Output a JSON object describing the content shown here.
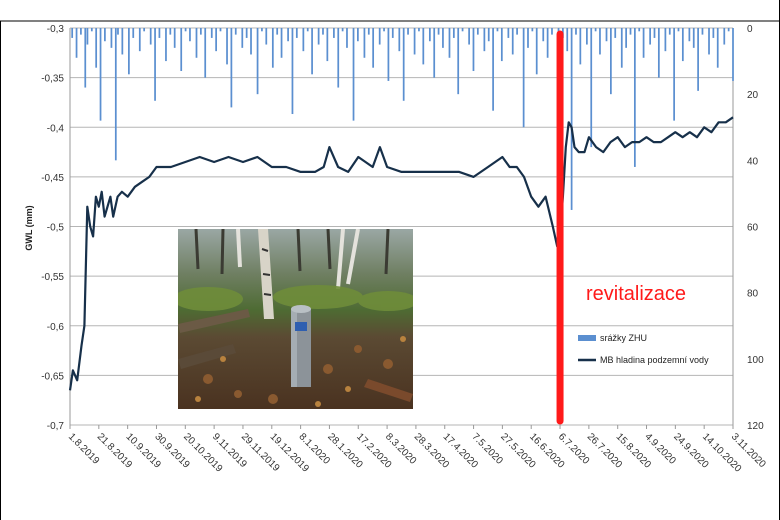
{
  "chart_data": {
    "type": "line",
    "ylabel": "GWL (mm)",
    "left_axis": {
      "min": -0.7,
      "max": -0.3,
      "ticks": [
        "-0,3",
        "-0,35",
        "-0,4",
        "-0,45",
        "-0,5",
        "-0,55",
        "-0,6",
        "-0,65",
        "-0,7"
      ]
    },
    "right_axis": {
      "min": 0,
      "max": 120,
      "inverted": true,
      "ticks": [
        "0",
        "20",
        "40",
        "60",
        "80",
        "100",
        "120"
      ]
    },
    "x_ticks": [
      "1.8.2019",
      "21.8.2019",
      "10.9.2019",
      "30.9.2019",
      "20.10.2019",
      "9.11.2019",
      "29.11.2019",
      "19.12.2019",
      "8.1.2020",
      "28.1.2020",
      "17.2.2020",
      "8.3.2020",
      "28.3.2020",
      "17.4.2020",
      "7.5.2020",
      "27.5.2020",
      "16.6.2020",
      "6.7.2020",
      "26.7.2020",
      "15.8.2020",
      "4.9.2020",
      "24.9.2020",
      "14.10.2020",
      "3.11.2020"
    ],
    "grid": true,
    "legend_position": "right",
    "series": [
      {
        "name": "srážky ZHU",
        "axis": "right",
        "kind": "bar",
        "color": "#5b8fd0",
        "x_start": "1.8.2019",
        "x_end": "3.11.2020",
        "values": [
          0,
          3,
          0,
          9,
          0,
          2,
          0,
          18,
          5,
          0,
          1,
          0,
          12,
          0,
          28,
          0,
          4,
          0,
          0,
          6,
          0,
          40,
          2,
          0,
          8,
          0,
          0,
          14,
          0,
          3,
          0,
          0,
          7,
          0,
          1,
          0,
          0,
          5,
          0,
          22,
          0,
          3,
          0,
          0,
          10,
          0,
          2,
          0,
          6,
          0,
          0,
          13,
          0,
          1,
          0,
          4,
          0,
          0,
          9,
          0,
          2,
          0,
          15,
          0,
          0,
          3,
          0,
          7,
          0,
          1,
          0,
          0,
          11,
          0,
          24,
          0,
          2,
          0,
          0,
          6,
          0,
          3,
          0,
          8,
          0,
          0,
          20,
          0,
          1,
          0,
          5,
          0,
          0,
          12,
          0,
          2,
          0,
          9,
          0,
          0,
          4,
          0,
          26,
          0,
          3,
          0,
          0,
          7,
          0,
          1,
          0,
          14,
          0,
          0,
          5,
          0,
          2,
          0,
          10,
          0,
          0,
          3,
          0,
          18,
          0,
          1,
          0,
          6,
          0,
          0,
          28,
          0,
          4,
          0,
          0,
          9,
          0,
          2,
          0,
          12,
          0,
          0,
          5,
          0,
          1,
          0,
          16,
          0,
          3,
          0,
          0,
          7,
          0,
          22,
          0,
          2,
          0,
          0,
          8,
          0,
          1,
          0,
          11,
          0,
          0,
          4,
          0,
          15,
          0,
          2,
          0,
          6,
          0,
          0,
          9,
          0,
          3,
          0,
          20,
          0,
          1,
          0,
          0,
          5,
          0,
          13,
          0,
          2,
          0,
          0,
          7,
          0,
          4,
          0,
          25,
          0,
          1,
          0,
          10,
          0,
          0,
          3,
          0,
          8,
          0,
          2,
          0,
          0,
          30,
          0,
          6,
          0,
          1,
          0,
          14,
          0,
          0,
          4,
          0,
          9,
          0,
          2,
          0,
          0,
          17,
          0,
          3,
          0,
          7,
          0,
          55,
          0,
          2,
          0,
          11,
          0,
          0,
          5,
          0,
          36,
          0,
          1,
          0,
          8,
          0,
          0,
          4,
          0,
          20,
          0,
          3,
          0,
          0,
          12,
          0,
          6,
          0,
          2,
          0,
          42,
          0,
          1,
          0,
          9,
          0,
          0,
          5,
          0,
          3,
          0,
          15,
          0,
          0,
          7,
          0,
          2,
          0,
          28,
          0,
          1,
          0,
          10,
          0,
          0,
          4,
          0,
          6,
          0,
          19,
          0,
          2,
          0,
          0,
          8,
          0,
          3,
          0,
          12,
          0,
          0,
          5,
          0,
          1,
          0,
          16
        ]
      },
      {
        "name": "MB hladina podzemní vody",
        "axis": "left",
        "kind": "line",
        "color": "#17304a",
        "x": [
          "1.8.2019",
          "3.8.2019",
          "6.8.2019",
          "9.8.2019",
          "11.8.2019",
          "13.8.2019",
          "15.8.2019",
          "17.8.2019",
          "19.8.2019",
          "21.8.2019",
          "23.8.2019",
          "25.8.2019",
          "27.8.2019",
          "29.8.2019",
          "31.8.2019",
          "3.9.2019",
          "6.9.2019",
          "10.9.2019",
          "15.9.2019",
          "20.9.2019",
          "25.9.2019",
          "30.9.2019",
          "5.10.2019",
          "10.10.2019",
          "20.10.2019",
          "30.10.2019",
          "9.11.2019",
          "19.11.2019",
          "29.11.2019",
          "9.12.2019",
          "19.12.2019",
          "29.12.2019",
          "8.1.2020",
          "18.1.2020",
          "24.1.2020",
          "28.1.2020",
          "3.2.2020",
          "10.2.2020",
          "17.2.2020",
          "27.2.2020",
          "3.3.2020",
          "8.3.2020",
          "18.3.2020",
          "28.3.2020",
          "7.4.2020",
          "17.4.2020",
          "27.4.2020",
          "7.5.2020",
          "17.5.2020",
          "27.5.2020",
          "1.6.2020",
          "6.6.2020",
          "11.6.2020",
          "16.6.2020",
          "21.6.2020",
          "26.6.2020",
          "1.7.2020",
          "4.7.2020",
          "6.7.2020",
          "8.7.2020",
          "10.7.2020",
          "12.7.2020",
          "14.7.2020",
          "16.7.2020",
          "19.7.2020",
          "23.7.2020",
          "26.7.2020",
          "31.7.2020",
          "5.8.2020",
          "10.8.2020",
          "15.8.2020",
          "20.8.2020",
          "25.8.2020",
          "30.8.2020",
          "4.9.2020",
          "9.9.2020",
          "14.9.2020",
          "19.9.2020",
          "24.9.2020",
          "29.9.2020",
          "4.10.2020",
          "9.10.2020",
          "14.10.2020",
          "19.10.2020",
          "24.10.2020",
          "29.10.2020",
          "3.11.2020"
        ],
        "y": [
          -0.665,
          -0.645,
          -0.655,
          -0.62,
          -0.6,
          -0.48,
          -0.5,
          -0.51,
          -0.47,
          -0.48,
          -0.465,
          -0.49,
          -0.48,
          -0.47,
          -0.49,
          -0.47,
          -0.465,
          -0.47,
          -0.46,
          -0.455,
          -0.45,
          -0.44,
          -0.44,
          -0.44,
          -0.435,
          -0.43,
          -0.435,
          -0.43,
          -0.435,
          -0.43,
          -0.44,
          -0.44,
          -0.445,
          -0.445,
          -0.44,
          -0.42,
          -0.44,
          -0.445,
          -0.43,
          -0.44,
          -0.42,
          -0.44,
          -0.445,
          -0.445,
          -0.445,
          -0.445,
          -0.445,
          -0.45,
          -0.44,
          -0.43,
          -0.44,
          -0.44,
          -0.45,
          -0.47,
          -0.48,
          -0.47,
          -0.5,
          -0.52,
          -0.51,
          -0.47,
          -0.42,
          -0.395,
          -0.4,
          -0.42,
          -0.425,
          -0.425,
          -0.41,
          -0.42,
          -0.425,
          -0.415,
          -0.41,
          -0.42,
          -0.415,
          -0.415,
          -0.41,
          -0.415,
          -0.415,
          -0.41,
          -0.405,
          -0.41,
          -0.405,
          -0.41,
          -0.4,
          -0.405,
          -0.395,
          -0.395,
          -0.39
        ]
      }
    ],
    "annotations": [
      {
        "text": "revitalizace",
        "x": "6.7.2020",
        "color": "#ff1a1a"
      }
    ]
  },
  "image": {
    "name": "photo-groundwater-well"
  }
}
